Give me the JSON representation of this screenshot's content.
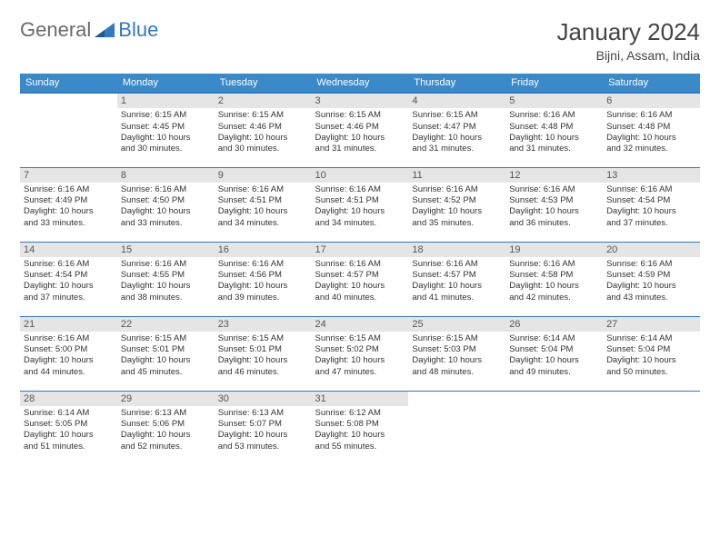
{
  "brand": {
    "text1": "General",
    "text2": "Blue"
  },
  "title": "January 2024",
  "subtitle": "Bijni, Assam, India",
  "colors": {
    "header_bg": "#3a89c9",
    "header_text": "#ffffff",
    "divider": "#2f7ac0",
    "daynum_bg": "#e5e5e5",
    "logo_gray": "#6a6a6a",
    "logo_blue": "#2f7ac0"
  },
  "daynames": [
    "Sunday",
    "Monday",
    "Tuesday",
    "Wednesday",
    "Thursday",
    "Friday",
    "Saturday"
  ],
  "weeks": [
    [
      {
        "num": "",
        "lines": []
      },
      {
        "num": "1",
        "lines": [
          "Sunrise: 6:15 AM",
          "Sunset: 4:45 PM",
          "Daylight: 10 hours",
          "and 30 minutes."
        ]
      },
      {
        "num": "2",
        "lines": [
          "Sunrise: 6:15 AM",
          "Sunset: 4:46 PM",
          "Daylight: 10 hours",
          "and 30 minutes."
        ]
      },
      {
        "num": "3",
        "lines": [
          "Sunrise: 6:15 AM",
          "Sunset: 4:46 PM",
          "Daylight: 10 hours",
          "and 31 minutes."
        ]
      },
      {
        "num": "4",
        "lines": [
          "Sunrise: 6:15 AM",
          "Sunset: 4:47 PM",
          "Daylight: 10 hours",
          "and 31 minutes."
        ]
      },
      {
        "num": "5",
        "lines": [
          "Sunrise: 6:16 AM",
          "Sunset: 4:48 PM",
          "Daylight: 10 hours",
          "and 31 minutes."
        ]
      },
      {
        "num": "6",
        "lines": [
          "Sunrise: 6:16 AM",
          "Sunset: 4:48 PM",
          "Daylight: 10 hours",
          "and 32 minutes."
        ]
      }
    ],
    [
      {
        "num": "7",
        "lines": [
          "Sunrise: 6:16 AM",
          "Sunset: 4:49 PM",
          "Daylight: 10 hours",
          "and 33 minutes."
        ]
      },
      {
        "num": "8",
        "lines": [
          "Sunrise: 6:16 AM",
          "Sunset: 4:50 PM",
          "Daylight: 10 hours",
          "and 33 minutes."
        ]
      },
      {
        "num": "9",
        "lines": [
          "Sunrise: 6:16 AM",
          "Sunset: 4:51 PM",
          "Daylight: 10 hours",
          "and 34 minutes."
        ]
      },
      {
        "num": "10",
        "lines": [
          "Sunrise: 6:16 AM",
          "Sunset: 4:51 PM",
          "Daylight: 10 hours",
          "and 34 minutes."
        ]
      },
      {
        "num": "11",
        "lines": [
          "Sunrise: 6:16 AM",
          "Sunset: 4:52 PM",
          "Daylight: 10 hours",
          "and 35 minutes."
        ]
      },
      {
        "num": "12",
        "lines": [
          "Sunrise: 6:16 AM",
          "Sunset: 4:53 PM",
          "Daylight: 10 hours",
          "and 36 minutes."
        ]
      },
      {
        "num": "13",
        "lines": [
          "Sunrise: 6:16 AM",
          "Sunset: 4:54 PM",
          "Daylight: 10 hours",
          "and 37 minutes."
        ]
      }
    ],
    [
      {
        "num": "14",
        "lines": [
          "Sunrise: 6:16 AM",
          "Sunset: 4:54 PM",
          "Daylight: 10 hours",
          "and 37 minutes."
        ]
      },
      {
        "num": "15",
        "lines": [
          "Sunrise: 6:16 AM",
          "Sunset: 4:55 PM",
          "Daylight: 10 hours",
          "and 38 minutes."
        ]
      },
      {
        "num": "16",
        "lines": [
          "Sunrise: 6:16 AM",
          "Sunset: 4:56 PM",
          "Daylight: 10 hours",
          "and 39 minutes."
        ]
      },
      {
        "num": "17",
        "lines": [
          "Sunrise: 6:16 AM",
          "Sunset: 4:57 PM",
          "Daylight: 10 hours",
          "and 40 minutes."
        ]
      },
      {
        "num": "18",
        "lines": [
          "Sunrise: 6:16 AM",
          "Sunset: 4:57 PM",
          "Daylight: 10 hours",
          "and 41 minutes."
        ]
      },
      {
        "num": "19",
        "lines": [
          "Sunrise: 6:16 AM",
          "Sunset: 4:58 PM",
          "Daylight: 10 hours",
          "and 42 minutes."
        ]
      },
      {
        "num": "20",
        "lines": [
          "Sunrise: 6:16 AM",
          "Sunset: 4:59 PM",
          "Daylight: 10 hours",
          "and 43 minutes."
        ]
      }
    ],
    [
      {
        "num": "21",
        "lines": [
          "Sunrise: 6:16 AM",
          "Sunset: 5:00 PM",
          "Daylight: 10 hours",
          "and 44 minutes."
        ]
      },
      {
        "num": "22",
        "lines": [
          "Sunrise: 6:15 AM",
          "Sunset: 5:01 PM",
          "Daylight: 10 hours",
          "and 45 minutes."
        ]
      },
      {
        "num": "23",
        "lines": [
          "Sunrise: 6:15 AM",
          "Sunset: 5:01 PM",
          "Daylight: 10 hours",
          "and 46 minutes."
        ]
      },
      {
        "num": "24",
        "lines": [
          "Sunrise: 6:15 AM",
          "Sunset: 5:02 PM",
          "Daylight: 10 hours",
          "and 47 minutes."
        ]
      },
      {
        "num": "25",
        "lines": [
          "Sunrise: 6:15 AM",
          "Sunset: 5:03 PM",
          "Daylight: 10 hours",
          "and 48 minutes."
        ]
      },
      {
        "num": "26",
        "lines": [
          "Sunrise: 6:14 AM",
          "Sunset: 5:04 PM",
          "Daylight: 10 hours",
          "and 49 minutes."
        ]
      },
      {
        "num": "27",
        "lines": [
          "Sunrise: 6:14 AM",
          "Sunset: 5:04 PM",
          "Daylight: 10 hours",
          "and 50 minutes."
        ]
      }
    ],
    [
      {
        "num": "28",
        "lines": [
          "Sunrise: 6:14 AM",
          "Sunset: 5:05 PM",
          "Daylight: 10 hours",
          "and 51 minutes."
        ]
      },
      {
        "num": "29",
        "lines": [
          "Sunrise: 6:13 AM",
          "Sunset: 5:06 PM",
          "Daylight: 10 hours",
          "and 52 minutes."
        ]
      },
      {
        "num": "30",
        "lines": [
          "Sunrise: 6:13 AM",
          "Sunset: 5:07 PM",
          "Daylight: 10 hours",
          "and 53 minutes."
        ]
      },
      {
        "num": "31",
        "lines": [
          "Sunrise: 6:12 AM",
          "Sunset: 5:08 PM",
          "Daylight: 10 hours",
          "and 55 minutes."
        ]
      },
      {
        "num": "",
        "lines": []
      },
      {
        "num": "",
        "lines": []
      },
      {
        "num": "",
        "lines": []
      }
    ]
  ]
}
